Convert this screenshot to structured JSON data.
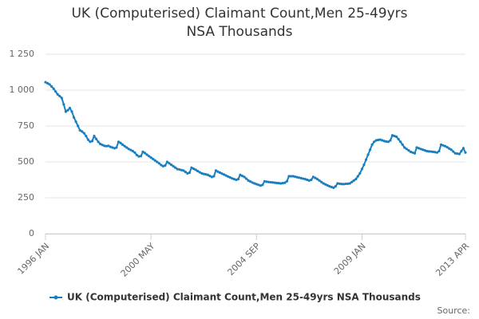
{
  "chart_data": {
    "type": "line",
    "title": "UK (Computerised) Claimant Count,Men 25-49yrs NSA Thousands",
    "source": "Source:",
    "categories": [
      "1996 JAN",
      null,
      null,
      null,
      null,
      null,
      null,
      null,
      null,
      null,
      null,
      null,
      null,
      null,
      null,
      null,
      null,
      null,
      null,
      null,
      null,
      null,
      null,
      null,
      null,
      null,
      null,
      null,
      null,
      null,
      null,
      null,
      null,
      null,
      null,
      null,
      null,
      null,
      null,
      null,
      null,
      null,
      null,
      null,
      null,
      null,
      null,
      null,
      null,
      null,
      null,
      null,
      "2000 MAY",
      null,
      null,
      null,
      null,
      null,
      null,
      null,
      null,
      null,
      null,
      null,
      null,
      null,
      null,
      null,
      null,
      null,
      null,
      null,
      null,
      null,
      null,
      null,
      null,
      null,
      null,
      null,
      null,
      null,
      null,
      null,
      null,
      null,
      null,
      null,
      null,
      null,
      null,
      null,
      null,
      null,
      null,
      null,
      null,
      null,
      null,
      null,
      null,
      null,
      null,
      null,
      "2004 SEP",
      null,
      null,
      null,
      null,
      null,
      null,
      null,
      null,
      null,
      null,
      null,
      null,
      null,
      null,
      null,
      null,
      null,
      null,
      null,
      null,
      null,
      null,
      null,
      null,
      null,
      null,
      null,
      null,
      null,
      null,
      null,
      null,
      null,
      null,
      null,
      null,
      null,
      null,
      null,
      null,
      null,
      null,
      null,
      null,
      null,
      null,
      null,
      null,
      null,
      null,
      null,
      "2009 JAN",
      null,
      null,
      null,
      null,
      null,
      null,
      null,
      null,
      null,
      null,
      null,
      null,
      null,
      null,
      null,
      null,
      null,
      null,
      null,
      null,
      null,
      null,
      null,
      null,
      null,
      null,
      null,
      null,
      null,
      null,
      null,
      null,
      null,
      null,
      null,
      null,
      null,
      null,
      null,
      null,
      null,
      null,
      null,
      null,
      null,
      null,
      null,
      null,
      null,
      null,
      "2013 APR"
    ],
    "series": [
      {
        "name": "UK (Computerised) Claimant Count,Men 25-49yrs NSA Thousands",
        "color": "#1a7fc1",
        "values": [
          1055,
          1048,
          1040,
          1025,
          1010,
          990,
          970,
          958,
          945,
          900,
          850,
          860,
          875,
          850,
          810,
          780,
          750,
          720,
          712,
          700,
          680,
          655,
          640,
          645,
          680,
          660,
          640,
          625,
          618,
          612,
          610,
          612,
          605,
          600,
          595,
          600,
          640,
          632,
          620,
          610,
          600,
          590,
          583,
          576,
          565,
          548,
          538,
          540,
          570,
          562,
          550,
          540,
          530,
          520,
          510,
          500,
          490,
          478,
          470,
          475,
          500,
          490,
          480,
          470,
          460,
          450,
          447,
          443,
          440,
          430,
          420,
          425,
          460,
          452,
          445,
          436,
          428,
          420,
          416,
          413,
          410,
          402,
          395,
          400,
          440,
          432,
          425,
          418,
          412,
          405,
          398,
          392,
          385,
          380,
          375,
          380,
          410,
          402,
          395,
          383,
          370,
          363,
          356,
          350,
          345,
          340,
          335,
          340,
          365,
          362,
          360,
          358,
          357,
          355,
          353,
          352,
          350,
          352,
          355,
          365,
          400,
          400,
          400,
          397,
          393,
          390,
          387,
          383,
          380,
          375,
          370,
          375,
          395,
          388,
          380,
          370,
          360,
          350,
          343,
          337,
          330,
          325,
          320,
          330,
          350,
          348,
          346,
          345,
          347,
          348,
          350,
          360,
          370,
          380,
          400,
          420,
          450,
          480,
          515,
          550,
          585,
          620,
          640,
          650,
          653,
          655,
          650,
          645,
          642,
          640,
          650,
          685,
          680,
          675,
          658,
          640,
          620,
          600,
          590,
          580,
          570,
          565,
          560,
          600,
          595,
          590,
          585,
          580,
          575,
          573,
          572,
          570,
          568,
          565,
          575,
          620,
          615,
          610,
          602,
          593,
          585,
          572,
          560,
          558,
          555,
          575,
          595,
          565
        ]
      }
    ],
    "ylim": [
      0,
      1250
    ],
    "yticks": [
      0,
      250,
      500,
      750,
      {
        "value": 1000,
        "label": "1 000"
      },
      {
        "value": 1250,
        "label": "1 250"
      }
    ],
    "grid": true
  }
}
